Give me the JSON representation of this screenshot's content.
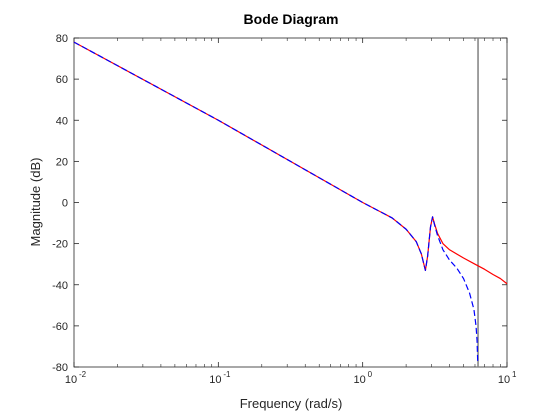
{
  "chart_data": {
    "type": "line",
    "title": "Bode Diagram",
    "xlabel": "Frequency (rad/s)",
    "ylabel": "Magnitude (dB)",
    "xscale": "log",
    "xlim": [
      0.01,
      10
    ],
    "ylim": [
      -80,
      80
    ],
    "x_ticks": [
      {
        "base": "10",
        "exp": "-2",
        "value": 0.01
      },
      {
        "base": "10",
        "exp": "-1",
        "value": 0.1
      },
      {
        "base": "10",
        "exp": "0",
        "value": 1
      },
      {
        "base": "10",
        "exp": "1",
        "value": 10
      }
    ],
    "y_ticks": [
      "80",
      "60",
      "40",
      "20",
      "0",
      "-20",
      "-40",
      "-60",
      "-80"
    ],
    "grid": false,
    "vertical_line": {
      "x": 6.3,
      "color": "#808080"
    },
    "series": [
      {
        "color": "#ff0000",
        "style": "solid",
        "points": [
          [
            0.01,
            78
          ],
          [
            0.1,
            40
          ],
          [
            1,
            0
          ],
          [
            1.6,
            -7.5
          ],
          [
            2.0,
            -13
          ],
          [
            2.35,
            -19
          ],
          [
            2.55,
            -25
          ],
          [
            2.72,
            -33
          ],
          [
            2.82,
            -26
          ],
          [
            2.95,
            -12
          ],
          [
            3.05,
            -7
          ],
          [
            3.15,
            -10.5
          ],
          [
            3.3,
            -15
          ],
          [
            3.6,
            -20
          ],
          [
            4.0,
            -23
          ],
          [
            5.0,
            -27
          ],
          [
            6.0,
            -30
          ],
          [
            7.0,
            -32.5
          ],
          [
            8.0,
            -35
          ],
          [
            9.0,
            -37
          ],
          [
            10,
            -39.5
          ]
        ]
      },
      {
        "color": "#0000ff",
        "style": "dashed",
        "points": [
          [
            0.01,
            78
          ],
          [
            0.1,
            40
          ],
          [
            1,
            0
          ],
          [
            1.6,
            -7.5
          ],
          [
            2.0,
            -13
          ],
          [
            2.35,
            -19
          ],
          [
            2.55,
            -25
          ],
          [
            2.72,
            -33
          ],
          [
            2.82,
            -26
          ],
          [
            2.95,
            -12
          ],
          [
            3.05,
            -7
          ],
          [
            3.15,
            -11
          ],
          [
            3.3,
            -16
          ],
          [
            3.6,
            -23
          ],
          [
            4.0,
            -28
          ],
          [
            4.5,
            -32
          ],
          [
            5.0,
            -37
          ],
          [
            5.5,
            -44
          ],
          [
            5.9,
            -52
          ],
          [
            6.1,
            -60
          ],
          [
            6.2,
            -67
          ],
          [
            6.27,
            -78
          ]
        ]
      }
    ]
  }
}
